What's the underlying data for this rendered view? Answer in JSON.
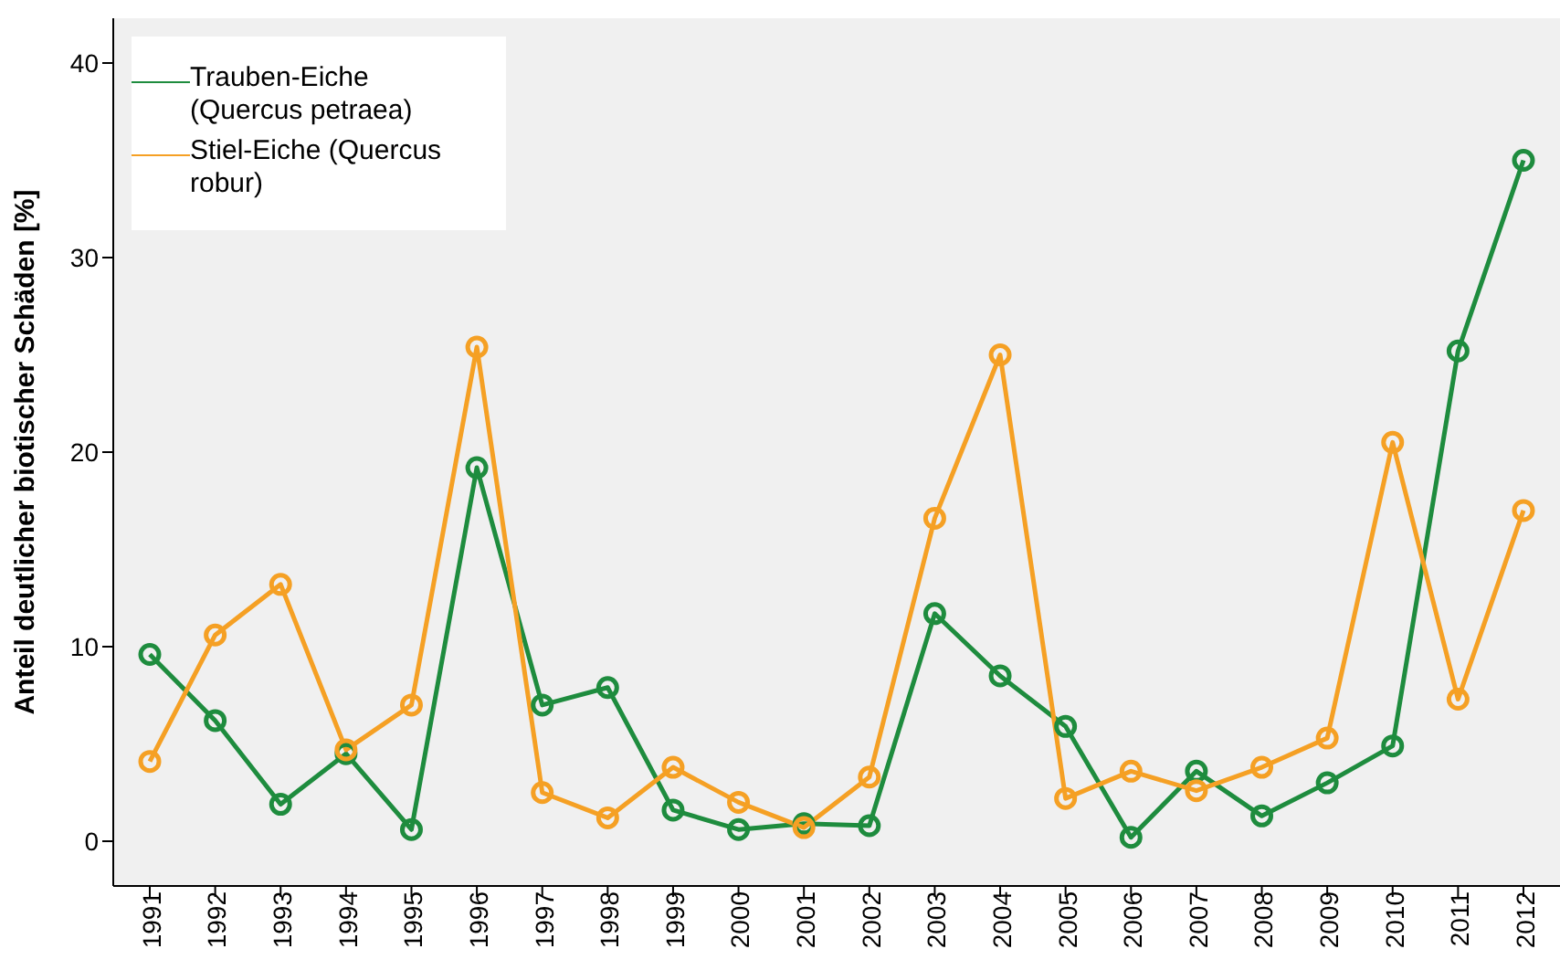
{
  "chart_data": {
    "type": "line",
    "ylabel": "Anteil deutlicher biotischer Schäden [%]",
    "categories": [
      "1991",
      "1992",
      "1993",
      "1994",
      "1995",
      "1996",
      "1997",
      "1998",
      "1999",
      "2000",
      "2001",
      "2002",
      "2003",
      "2004",
      "2005",
      "2006",
      "2007",
      "2008",
      "2009",
      "2010",
      "2011",
      "2012"
    ],
    "series": [
      {
        "name": "Trauben-Eiche (Quercus petraea)",
        "color": "#1e8c3e",
        "values": [
          9.6,
          6.2,
          1.9,
          4.5,
          0.6,
          19.2,
          7.0,
          7.9,
          1.6,
          0.6,
          0.9,
          0.8,
          11.7,
          8.5,
          5.9,
          0.2,
          3.6,
          1.3,
          3.0,
          4.9,
          25.2,
          35.0
        ]
      },
      {
        "name": "Stiel-Eiche (Quercus robur)",
        "color": "#f5a024",
        "values": [
          4.1,
          10.6,
          13.2,
          4.7,
          7.0,
          25.4,
          2.5,
          1.2,
          3.8,
          2.0,
          0.7,
          3.3,
          16.6,
          25.0,
          2.2,
          3.6,
          2.6,
          3.8,
          5.3,
          20.5,
          7.3,
          17.0
        ]
      }
    ],
    "ylim": [
      -2.3,
      42.3
    ],
    "yticks": [
      0,
      10,
      20,
      30,
      40
    ],
    "grid": false,
    "legend": "top left",
    "marker": "circle",
    "line_style": "solid"
  }
}
